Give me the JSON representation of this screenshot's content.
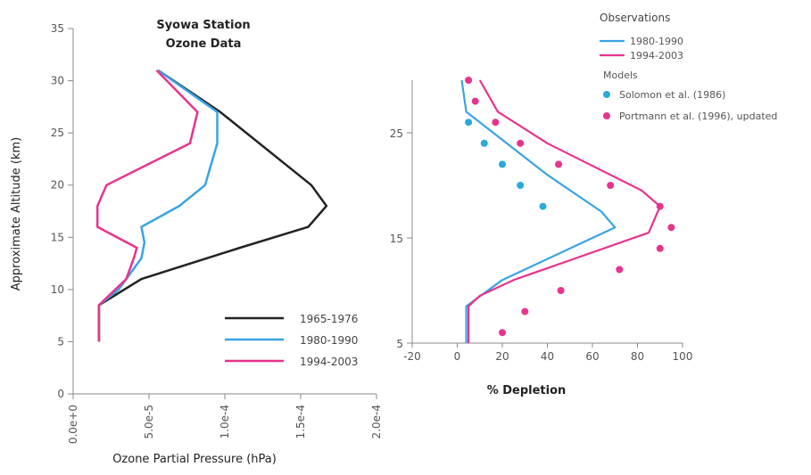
{
  "chart_data": [
    {
      "type": "line",
      "title": "Syowa Station\nOzone Data",
      "xlabel": "Ozone Partial Pressure (hPa)",
      "ylabel": "Approximate Altitude (km)",
      "xlim": [
        0,
        0.0002
      ],
      "ylim": [
        0,
        35
      ],
      "xticks": [
        0,
        5e-05,
        0.0001,
        0.00015,
        0.0002
      ],
      "xtick_labels": [
        "0.0e+0",
        "5.0e-5",
        "1.0e-4",
        "1.5e-4",
        "2.0e-4"
      ],
      "yticks": [
        0,
        5,
        10,
        15,
        20,
        25,
        30,
        35
      ],
      "ytick_labels": [
        "0",
        "5",
        "10",
        "15",
        "20",
        "25",
        "30",
        "35"
      ],
      "legend_position": "lower-right",
      "series": [
        {
          "name": "1965-1976",
          "color": "#222222",
          "points": [
            [
              1.7e-05,
              5
            ],
            [
              1.7e-05,
              8.5
            ],
            [
              4.5e-05,
              11
            ],
            [
              0.00011,
              14
            ],
            [
              0.000155,
              16
            ],
            [
              0.000167,
              18
            ],
            [
              0.000157,
              20
            ],
            [
              9.7e-05,
              27
            ],
            [
              5.6e-05,
              31
            ]
          ]
        },
        {
          "name": "1980-1990",
          "color": "#3aa3e3",
          "points": [
            [
              1.7e-05,
              5
            ],
            [
              1.7e-05,
              8.5
            ],
            [
              3e-05,
              10
            ],
            [
              4.5e-05,
              13
            ],
            [
              4.7e-05,
              14.5
            ],
            [
              4.5e-05,
              16
            ],
            [
              7e-05,
              18
            ],
            [
              8.7e-05,
              20
            ],
            [
              9.5e-05,
              24
            ],
            [
              9.5e-05,
              27
            ],
            [
              5.6e-05,
              31
            ]
          ]
        },
        {
          "name": "1994-2003",
          "color": "#e8338c",
          "points": [
            [
              1.7e-05,
              5
            ],
            [
              1.7e-05,
              8.5
            ],
            [
              3.5e-05,
              11
            ],
            [
              4e-05,
              13
            ],
            [
              4.2e-05,
              14
            ],
            [
              1.6e-05,
              16
            ],
            [
              1.6e-05,
              18
            ],
            [
              2.2e-05,
              20
            ],
            [
              7.7e-05,
              24
            ],
            [
              8.2e-05,
              27
            ],
            [
              5.5e-05,
              31
            ]
          ]
        }
      ]
    },
    {
      "type": "line",
      "xlabel": "% Depletion",
      "ylabel": "",
      "xlim": [
        -20,
        100
      ],
      "ylim": [
        5,
        30
      ],
      "xticks": [
        -20,
        0,
        20,
        40,
        60,
        80,
        100
      ],
      "xtick_labels": [
        "-20",
        "0",
        "20",
        "40",
        "60",
        "80",
        "100"
      ],
      "yticks": [
        5,
        15,
        25
      ],
      "ytick_labels": [
        "5",
        "15",
        "25"
      ],
      "legend_position": "top-right",
      "legend": {
        "observations_heading": "Observations",
        "models_heading": "Models"
      },
      "series": [
        {
          "name": "1980-1990",
          "group": "Observations",
          "color": "#3aa3e3",
          "points": [
            [
              4,
              5
            ],
            [
              4,
              8.5
            ],
            [
              20,
              11
            ],
            [
              60,
              15
            ],
            [
              70,
              16
            ],
            [
              64,
              17.5
            ],
            [
              40,
              21
            ],
            [
              4,
              27
            ],
            [
              2,
              30
            ]
          ]
        },
        {
          "name": "1994-2003",
          "group": "Observations",
          "color": "#e8338c",
          "points": [
            [
              5,
              5
            ],
            [
              5,
              8.5
            ],
            [
              10,
              9.5
            ],
            [
              25,
              11
            ],
            [
              85,
              15.5
            ],
            [
              90,
              18
            ],
            [
              82,
              19.5
            ],
            [
              40,
              24
            ],
            [
              18,
              27
            ],
            [
              10,
              30
            ]
          ]
        },
        {
          "name": "Solomon et al. (1986)",
          "group": "Models",
          "marker": "dot",
          "color": "#2aa8e0",
          "points": [
            [
              5,
              26
            ],
            [
              12,
              24
            ],
            [
              20,
              22
            ],
            [
              28,
              20
            ],
            [
              38,
              18
            ]
          ]
        },
        {
          "name": "Portmann et al. (1996), updated",
          "group": "Models",
          "marker": "dot",
          "color": "#e8338c",
          "points": [
            [
              5,
              30
            ],
            [
              8,
              28
            ],
            [
              17,
              26
            ],
            [
              28,
              24
            ],
            [
              45,
              22
            ],
            [
              68,
              20
            ],
            [
              90,
              18
            ],
            [
              95,
              16
            ],
            [
              90,
              14
            ],
            [
              72,
              12
            ],
            [
              46,
              10
            ],
            [
              30,
              8
            ],
            [
              20,
              6
            ]
          ]
        }
      ]
    }
  ]
}
